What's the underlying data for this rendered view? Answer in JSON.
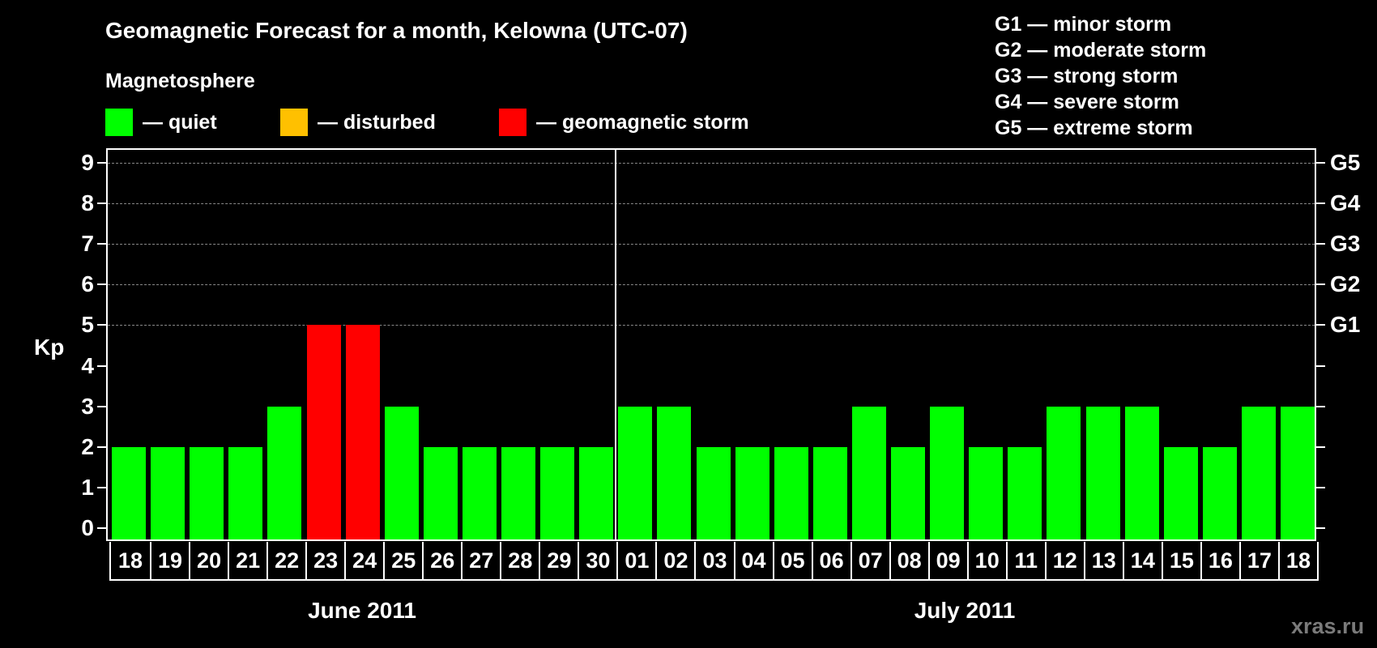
{
  "header": {
    "title": "Geomagnetic Forecast for a month, Kelowna (UTC-07)",
    "subtitle": "Magnetosphere"
  },
  "legend": [
    {
      "label": "— quiet",
      "color": "#00ff00"
    },
    {
      "label": "— disturbed",
      "color": "#ffc000"
    },
    {
      "label": "— geomagnetic storm",
      "color": "#ff0000"
    }
  ],
  "storm_scale": [
    "G1 — minor storm",
    "G2 — moderate storm",
    "G3 — strong storm",
    "G4 — severe storm",
    "G5 — extreme storm"
  ],
  "watermark": "xras.ru",
  "chart_data": {
    "type": "bar",
    "title": "Geomagnetic Forecast for a month, Kelowna (UTC-07)",
    "xlabel": "",
    "ylabel": "Kp",
    "ylim": [
      0,
      9
    ],
    "yticks": [
      0,
      1,
      2,
      3,
      4,
      5,
      6,
      7,
      8,
      9
    ],
    "right_axis_labels": {
      "5": "G1",
      "6": "G2",
      "7": "G3",
      "8": "G4",
      "9": "G5"
    },
    "grid": "dashed horizontal at Kp 5–9",
    "month_labels": [
      "June 2011",
      "July 2011"
    ],
    "categories": [
      "18",
      "19",
      "20",
      "21",
      "22",
      "23",
      "24",
      "25",
      "26",
      "27",
      "28",
      "29",
      "30",
      "01",
      "02",
      "03",
      "04",
      "05",
      "06",
      "07",
      "08",
      "09",
      "10",
      "11",
      "12",
      "13",
      "14",
      "15",
      "16",
      "17",
      "18"
    ],
    "values": [
      2,
      2,
      2,
      2,
      3,
      5,
      5,
      3,
      2,
      2,
      2,
      2,
      2,
      3,
      3,
      2,
      2,
      2,
      2,
      3,
      2,
      3,
      2,
      2,
      3,
      3,
      3,
      2,
      2,
      3,
      3
    ],
    "status": [
      "quiet",
      "quiet",
      "quiet",
      "quiet",
      "quiet",
      "storm",
      "storm",
      "quiet",
      "quiet",
      "quiet",
      "quiet",
      "quiet",
      "quiet",
      "quiet",
      "quiet",
      "quiet",
      "quiet",
      "quiet",
      "quiet",
      "quiet",
      "quiet",
      "quiet",
      "quiet",
      "quiet",
      "quiet",
      "quiet",
      "quiet",
      "quiet",
      "quiet",
      "quiet",
      "quiet"
    ],
    "colors": {
      "quiet": "#00ff00",
      "disturbed": "#ffc000",
      "storm": "#ff0000"
    },
    "legend_position": "top"
  }
}
